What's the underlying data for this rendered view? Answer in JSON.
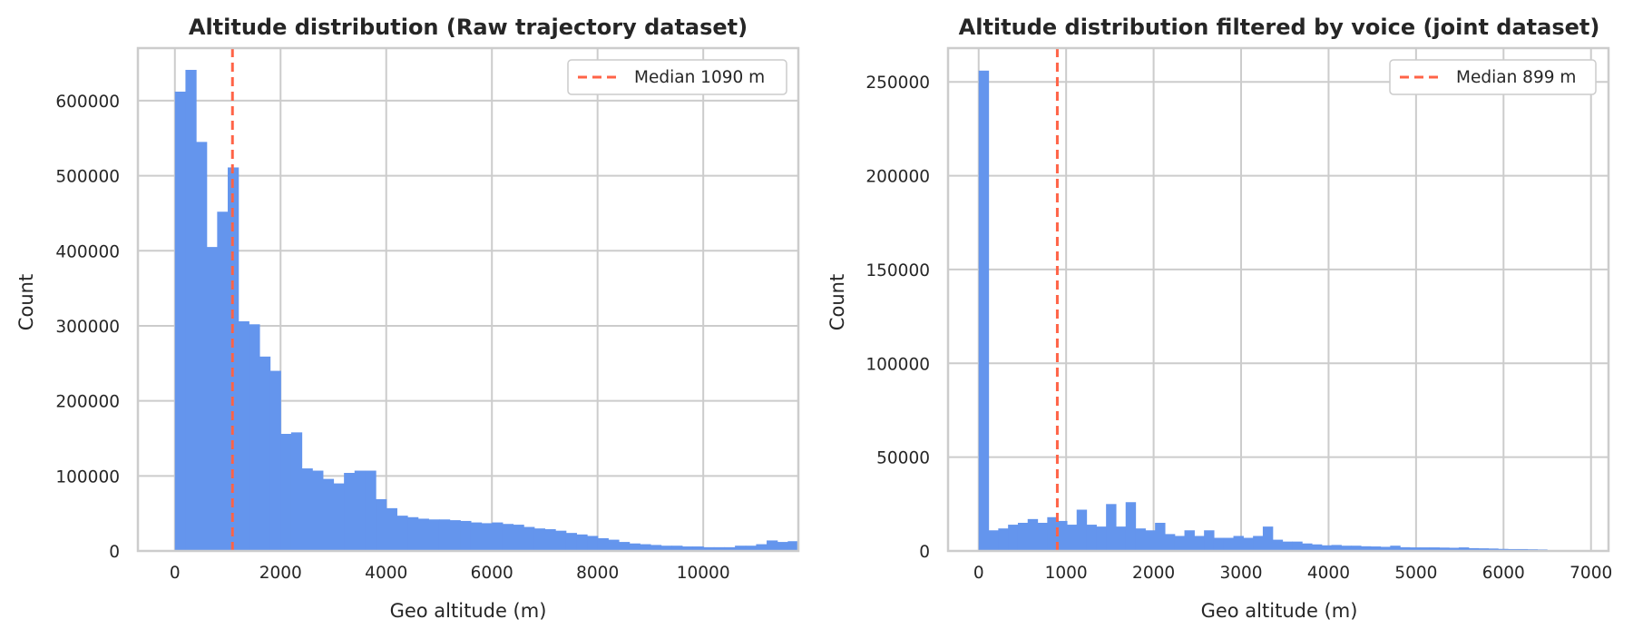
{
  "colors": {
    "bar": "#6495ED",
    "median": "#FF6347",
    "grid": "#cccccc",
    "spine": "#cccccc",
    "text": "#262626"
  },
  "chart_data": [
    {
      "type": "bar",
      "title": "Altitude distribution (Raw trajectory dataset)",
      "xlabel": "Geo altitude (m)",
      "ylabel": "Count",
      "xlim": [
        -700,
        11800
      ],
      "ylim": [
        0,
        670000
      ],
      "xticks": [
        0,
        2000,
        4000,
        6000,
        8000,
        10000
      ],
      "yticks": [
        0,
        100000,
        200000,
        300000,
        400000,
        500000,
        600000
      ],
      "grid": true,
      "legend_position": "top-right",
      "bin_start": 0,
      "bin_width": 200,
      "values": [
        612000,
        641000,
        545000,
        405000,
        452000,
        511000,
        306000,
        302000,
        259000,
        240000,
        156000,
        158000,
        110000,
        107000,
        96000,
        90000,
        104000,
        107000,
        107000,
        69000,
        57000,
        47000,
        45000,
        43000,
        42000,
        42000,
        41000,
        40000,
        38000,
        37000,
        38000,
        36000,
        35000,
        32000,
        30000,
        29000,
        27000,
        24000,
        22000,
        20000,
        17000,
        15000,
        12000,
        10000,
        9000,
        8000,
        7000,
        7000,
        6000,
        6000,
        5000,
        5000,
        5000,
        7000,
        7000,
        9000,
        14000,
        12000,
        13000
      ],
      "median": {
        "value": 1090,
        "label": "Median 1090 m"
      }
    },
    {
      "type": "bar",
      "title": "Altitude distribution filtered by voice (joint dataset)",
      "xlabel": "Geo altitude (m)",
      "ylabel": "Count",
      "xlim": [
        -350,
        7200
      ],
      "ylim": [
        0,
        268000
      ],
      "xticks": [
        0,
        1000,
        2000,
        3000,
        4000,
        5000,
        6000,
        7000
      ],
      "yticks": [
        0,
        50000,
        100000,
        150000,
        200000,
        250000
      ],
      "grid": true,
      "legend_position": "top-right",
      "bin_start": 0,
      "bin_width": 112,
      "values": [
        256000,
        11000,
        12000,
        14000,
        15000,
        17000,
        15000,
        18000,
        16000,
        14000,
        22000,
        14000,
        13000,
        25000,
        13000,
        26000,
        12000,
        11000,
        15000,
        9000,
        8000,
        11000,
        8000,
        11000,
        7000,
        7000,
        8000,
        7000,
        8000,
        13000,
        6000,
        5000,
        5000,
        4000,
        3500,
        3000,
        3200,
        2800,
        2800,
        2500,
        2400,
        2200,
        2800,
        2000,
        1900,
        1900,
        1900,
        1800,
        1700,
        1900,
        1500,
        1400,
        1300,
        1100,
        1000,
        1000,
        900,
        800
      ],
      "median": {
        "value": 899,
        "label": "Median 899 m"
      }
    }
  ]
}
